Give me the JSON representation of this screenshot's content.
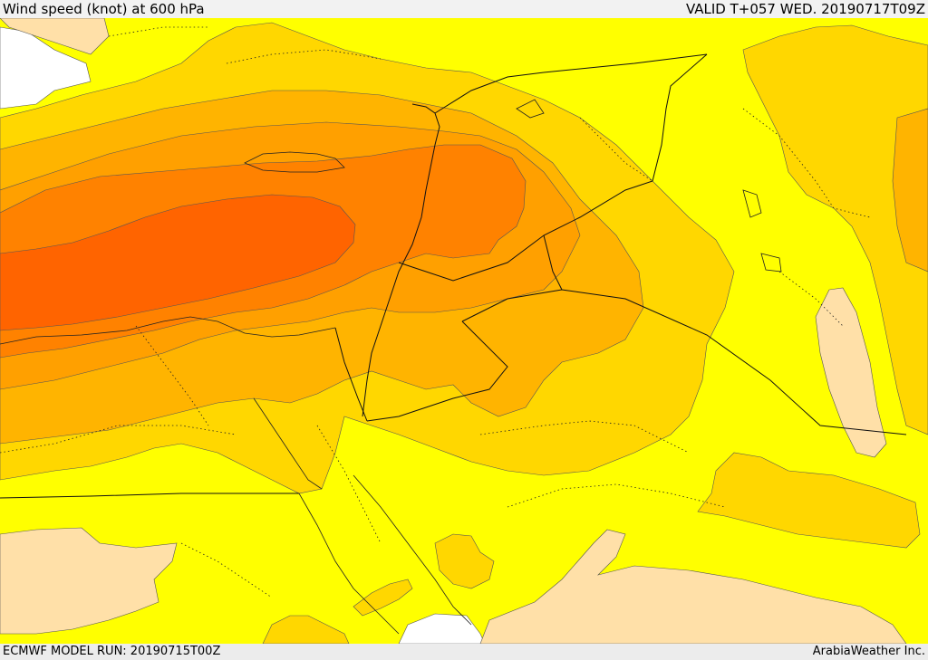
{
  "header": {
    "title": "Wind speed (knot) at 600 hPa",
    "valid_time": "VALID T+057 WED. 20190717T09Z"
  },
  "footer": {
    "model_run": "ECMWF MODEL RUN: 20190715T00Z",
    "credit": "ArabiaWeather Inc."
  },
  "colors": {
    "level_0": "#ffff00",
    "level_1": "#ffd700",
    "level_2": "#ffb400",
    "level_3": "#ffa000",
    "level_4": "#ff8200",
    "level_5": "#ff6400",
    "light_zone": "#ffe0a8",
    "sea_white": "#ffffff"
  }
}
